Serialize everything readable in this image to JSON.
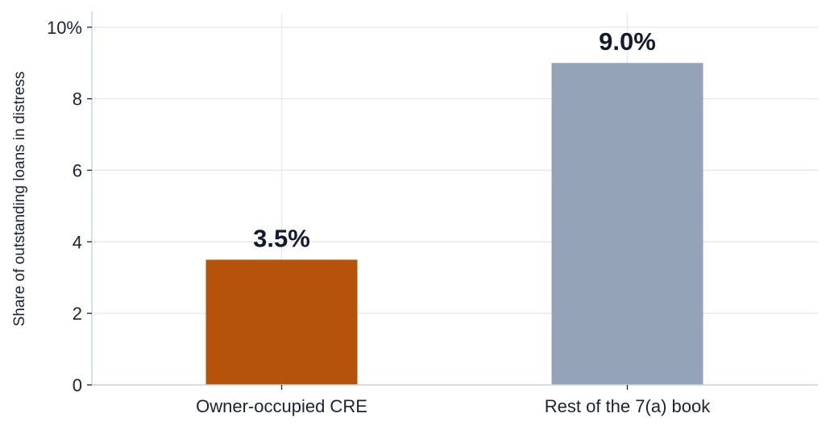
{
  "chart_data": {
    "type": "bar",
    "categories": [
      "Owner-occupied CRE",
      "Rest of the 7(a) book"
    ],
    "values": [
      3.5,
      9.0
    ],
    "data_labels": [
      "3.5%",
      "9.0%"
    ],
    "colors": [
      "#b5530b",
      "#94a3b8"
    ],
    "title": "",
    "xlabel": "",
    "ylabel": "Share of outstanding loans in distress",
    "ylim": [
      0,
      10.4
    ],
    "yticks": [
      0,
      2,
      4,
      6,
      8,
      10
    ],
    "ytick_labels": [
      "0",
      "2",
      "4",
      "6",
      "8",
      "10%"
    ],
    "grid": true,
    "legend": "none"
  }
}
